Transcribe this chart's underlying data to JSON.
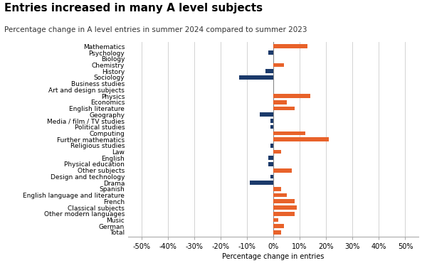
{
  "title": "Entries increased in many A level subjects",
  "subtitle": "Percentage change in A level entries in summer 2024 compared to summer 2023",
  "xlabel": "Percentage change in entries",
  "categories": [
    "Mathematics",
    "Psychology",
    "Biology",
    "Chemistry",
    "History",
    "Sociology",
    "Business studies",
    "Art and design subjects",
    "Physics",
    "Economics",
    "English literature",
    "Geography",
    "Media / film / TV studies",
    "Political studies",
    "Computing",
    "Further mathematics",
    "Religious studies",
    "Law",
    "English",
    "Physical education",
    "Other subjects",
    "Design and technology",
    "Drama",
    "Spanish",
    "English language and literature",
    "French",
    "Classical subjects",
    "Other modern languages",
    "Music",
    "German",
    "Total"
  ],
  "values": [
    13,
    -2,
    0,
    4,
    -3,
    -13,
    0,
    0,
    14,
    5,
    8,
    -5,
    -1,
    -1,
    12,
    21,
    -1,
    3,
    -2,
    -2,
    7,
    -1,
    -9,
    3,
    5,
    8,
    9,
    8,
    2,
    4,
    3
  ],
  "colors": [
    "#E8622A",
    "#1B3A6B",
    "#E8622A",
    "#E8622A",
    "#1B3A6B",
    "#1B3A6B",
    "#E8622A",
    "#E8622A",
    "#E8622A",
    "#E8622A",
    "#E8622A",
    "#1B3A6B",
    "#1B3A6B",
    "#1B3A6B",
    "#E8622A",
    "#E8622A",
    "#1B3A6B",
    "#E8622A",
    "#1B3A6B",
    "#1B3A6B",
    "#E8622A",
    "#1B3A6B",
    "#1B3A6B",
    "#E8622A",
    "#E8622A",
    "#E8622A",
    "#E8622A",
    "#E8622A",
    "#E8622A",
    "#E8622A",
    "#E8622A"
  ],
  "xlim": [
    -55,
    55
  ],
  "xticks": [
    -50,
    -40,
    -30,
    -20,
    -10,
    0,
    10,
    20,
    30,
    40,
    50
  ],
  "xtick_labels": [
    "-50%",
    "-40%",
    "-30%",
    "-20%",
    "-10%",
    "0%",
    "10%",
    "20%",
    "30%",
    "40%",
    "50%"
  ],
  "title_fontsize": 11,
  "subtitle_fontsize": 7.5,
  "label_fontsize": 6.5,
  "tick_fontsize": 7,
  "bar_height": 0.65,
  "background_color": "#FFFFFF",
  "grid_color": "#CCCCCC"
}
